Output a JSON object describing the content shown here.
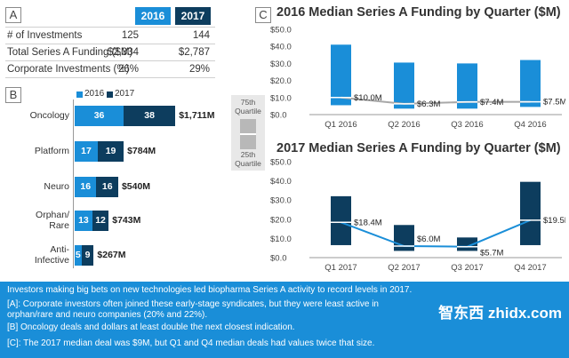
{
  "panelA": {
    "label": "A",
    "headers": [
      "2016",
      "2017"
    ],
    "rows": [
      {
        "name": "# of Investments",
        "v2016": "125",
        "v2017": "144"
      },
      {
        "name": "Total Series A Funding ($M)",
        "v2016": "$2,334",
        "v2017": "$2,787"
      },
      {
        "name": "Corporate Investments (%)",
        "v2016": "26%",
        "v2017": "29%"
      }
    ]
  },
  "panelB": {
    "label": "B",
    "legend": [
      "2016",
      "2017"
    ],
    "categories": [
      {
        "name": "Oncology",
        "v2016": 36,
        "v2017": 38,
        "total": "$1,711M"
      },
      {
        "name": "Platform",
        "v2016": 17,
        "v2017": 19,
        "total": "$784M"
      },
      {
        "name": "Neuro",
        "v2016": 16,
        "v2017": 16,
        "total": "$540M"
      },
      {
        "name": "Orphan/ Rare",
        "v2016": 13,
        "v2017": 12,
        "total": "$743M"
      },
      {
        "name": "Anti- Infective",
        "v2016": 5,
        "v2017": 9,
        "total": "$267M"
      }
    ]
  },
  "quartileLegend": {
    "top": "75th Quartile",
    "bottom": "25th Quartile"
  },
  "panelC": {
    "label": "C"
  },
  "chart_data": [
    {
      "type": "bar",
      "title": "2016 Median Series A Funding by Quarter ($M)",
      "categories": [
        "Q1 2016",
        "Q2 2016",
        "Q3 2016",
        "Q4 2016"
      ],
      "q25": [
        5.5,
        3.5,
        3.5,
        4.5
      ],
      "q75": [
        41,
        30.5,
        30,
        32
      ],
      "median": [
        10.0,
        6.3,
        7.4,
        7.5
      ],
      "median_labels": [
        "$10.0M",
        "$6.3M",
        "$7.4M",
        "$7.5M"
      ],
      "ylim": [
        0,
        50
      ],
      "yticks": [
        "$0.0",
        "$10.0",
        "$20.0",
        "$30.0",
        "$40.0",
        "$50.0"
      ]
    },
    {
      "type": "bar",
      "title": "2017 Median Series A Funding by Quarter ($M)",
      "categories": [
        "Q1 2017",
        "Q2 2017",
        "Q3 2017",
        "Q4 2017"
      ],
      "q25": [
        6.5,
        3.5,
        3.5,
        6.5
      ],
      "q75": [
        32,
        17,
        10.5,
        39.5
      ],
      "median": [
        18.4,
        6.0,
        5.7,
        19.5
      ],
      "median_labels": [
        "$18.4M",
        "$6.0M",
        "$5.7M",
        "$19.5M"
      ],
      "ylim": [
        0,
        50
      ],
      "yticks": [
        "$0.0",
        "$10.0",
        "$20.0",
        "$30.0",
        "$40.0",
        "$50.0"
      ]
    }
  ],
  "footer": {
    "lines": [
      "Investors making big bets on new technologies led biopharma Series A activity to record levels in 2017.",
      "[A]: Corporate investors often joined these early-stage syndicates, but they were least active in orphan/rare and neuro companies (20% and 22%).",
      "[B] Oncology deals and dollars at least double the next closest indication.",
      "[C]: The 2017 median deal was $9M, but Q1 and Q4 median deals had values twice that size."
    ],
    "watermark": "智东西 zhidx.com"
  },
  "colors": {
    "light": "#1a8ed8",
    "dark": "#0d3d5e",
    "median": "#a8a8a8",
    "line2017": "#1a8ed8"
  }
}
